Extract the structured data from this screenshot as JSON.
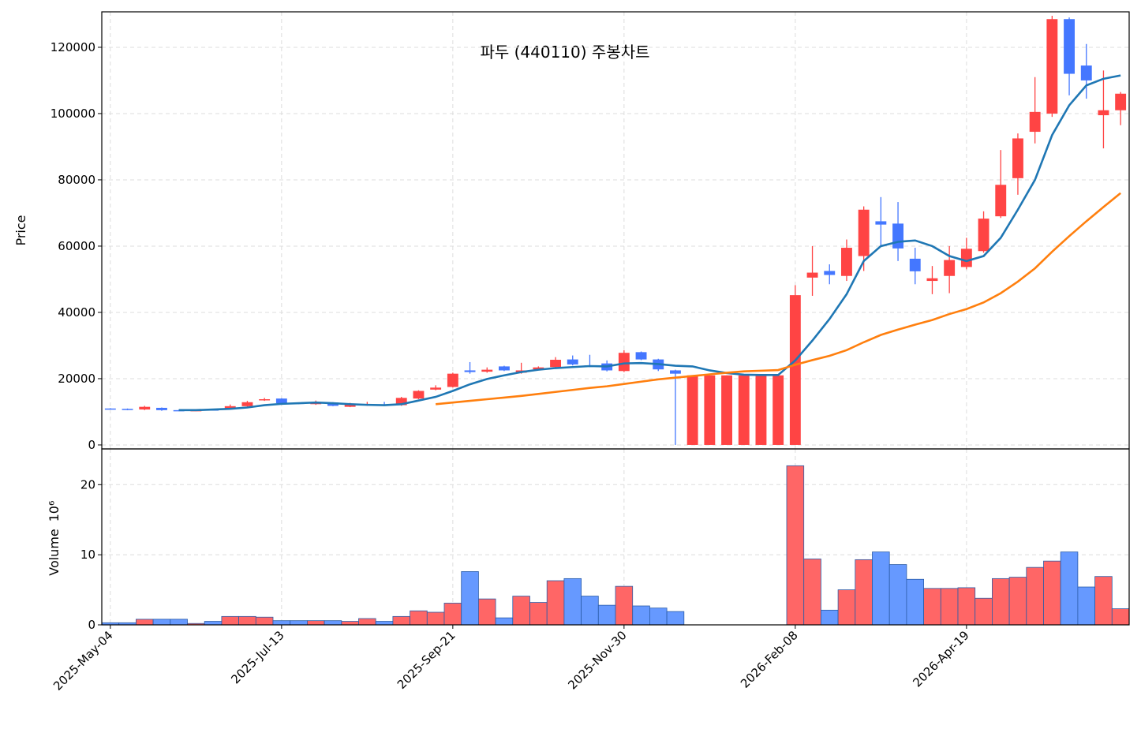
{
  "chart_data": {
    "type": "candlestick",
    "title": "파두 (440110) 주봉차트",
    "ylabel": "Price",
    "volume_ylabel": "Volume",
    "volume_offset": "10⁶",
    "categories": [
      "2025-May-04",
      null,
      null,
      null,
      null,
      null,
      null,
      null,
      null,
      null,
      "2025-Jul-13",
      null,
      null,
      null,
      null,
      null,
      null,
      null,
      null,
      null,
      "2025-Sep-21",
      null,
      null,
      null,
      null,
      null,
      null,
      null,
      null,
      null,
      "2025-Nov-30",
      null,
      null,
      null,
      null,
      null,
      null,
      null,
      null,
      null,
      "2026-Feb-08",
      null,
      null,
      null,
      null,
      null,
      null,
      null,
      null,
      null,
      "2026-Apr-19",
      null,
      null,
      null,
      null,
      null,
      null,
      null,
      null,
      null
    ],
    "open": [
      11000,
      10900,
      10700,
      11200,
      10500,
      10300,
      10700,
      10900,
      11700,
      13500,
      14000,
      12700,
      12300,
      12800,
      11500,
      12000,
      12200,
      12000,
      14000,
      16700,
      17500,
      22500,
      22100,
      23700,
      21800,
      22800,
      23500,
      25800,
      24000,
      24600,
      22300,
      28000,
      25800,
      22500,
      0,
      0,
      0,
      0,
      0,
      0,
      0,
      50500,
      52500,
      51000,
      57000,
      67500,
      66800,
      56200,
      49500,
      51000,
      53700,
      58500,
      69000,
      80500,
      94500,
      100000,
      128500,
      114500,
      99500,
      101000
    ],
    "high": [
      11100,
      11000,
      11800,
      11300,
      10600,
      10600,
      10900,
      12200,
      13300,
      14200,
      14100,
      12800,
      13400,
      12900,
      12700,
      13000,
      13000,
      14500,
      16500,
      18000,
      21800,
      25000,
      23400,
      23900,
      24800,
      23700,
      26500,
      27000,
      27200,
      25500,
      28600,
      28200,
      26000,
      22700,
      21000,
      21000,
      21000,
      21000,
      21000,
      21000,
      48200,
      60000,
      54500,
      62000,
      72000,
      74800,
      73300,
      59500,
      54000,
      60000,
      62500,
      70500,
      89000,
      94000,
      111000,
      129500,
      129000,
      121000,
      113000,
      106500
    ],
    "low": [
      10700,
      10500,
      10500,
      10300,
      10200,
      10200,
      10400,
      10700,
      11500,
      13300,
      12500,
      12300,
      12100,
      11700,
      11400,
      11800,
      11800,
      11800,
      13800,
      16500,
      17300,
      21500,
      21800,
      22300,
      21500,
      22600,
      23300,
      24000,
      23500,
      22200,
      22000,
      25600,
      22300,
      0,
      0,
      0,
      0,
      0,
      0,
      0,
      0,
      45000,
      48500,
      49500,
      52500,
      60000,
      55500,
      48500,
      45500,
      45800,
      53000,
      58000,
      68500,
      75500,
      91000,
      99000,
      105500,
      104500,
      89500,
      96500
    ],
    "close": [
      10800,
      10600,
      11500,
      10500,
      10300,
      10500,
      10500,
      11700,
      12900,
      13800,
      12600,
      12500,
      12900,
      11800,
      12200,
      12300,
      12000,
      14200,
      16300,
      17300,
      21500,
      22000,
      22700,
      22500,
      22500,
      23400,
      25700,
      24300,
      23700,
      22500,
      27800,
      25800,
      22800,
      21500,
      21000,
      21000,
      21000,
      21000,
      21000,
      21000,
      45200,
      52000,
      51300,
      59500,
      71000,
      66500,
      59300,
      52400,
      50300,
      55800,
      59200,
      68300,
      78500,
      92500,
      100500,
      128500,
      112000,
      110000,
      101000,
      106000
    ],
    "volume": [
      0.3,
      0.3,
      0.8,
      0.8,
      0.8,
      0.2,
      0.5,
      1.2,
      1.2,
      1.1,
      0.6,
      0.6,
      0.6,
      0.6,
      0.5,
      0.9,
      0.5,
      1.2,
      2.0,
      1.8,
      3.1,
      7.6,
      3.7,
      1.0,
      4.1,
      3.2,
      6.3,
      6.6,
      4.1,
      2.8,
      5.5,
      2.7,
      2.4,
      1.9,
      0,
      0,
      0,
      0,
      0,
      0,
      22.7,
      9.4,
      2.1,
      5.0,
      9.3,
      10.4,
      8.6,
      6.5,
      5.2,
      5.2,
      5.3,
      3.8,
      6.6,
      6.8,
      8.2,
      9.1,
      10.4,
      5.4,
      6.9,
      2.3
    ],
    "up_color": "#ff4444",
    "down_color": "#4477ff",
    "volume_up_color": "#ff6666",
    "volume_down_color": "#6699ff",
    "ma": [
      {
        "color": "#1f77b4",
        "values": [
          null,
          null,
          null,
          null,
          10500,
          10500,
          10700,
          10900,
          11300,
          12000,
          12400,
          12600,
          12800,
          12600,
          12300,
          12100,
          12000,
          12300,
          13400,
          14500,
          16300,
          18300,
          19900,
          21000,
          22000,
          22700,
          23200,
          23500,
          23800,
          23700,
          24600,
          24700,
          24400,
          23900,
          23700,
          22500,
          21700,
          21200,
          21100,
          21100,
          25500,
          31500,
          38000,
          45500,
          55500,
          60000,
          61300,
          61700,
          60000,
          57000,
          55500,
          57000,
          62500,
          71000,
          80000,
          93500,
          102500,
          108500,
          110500,
          111500
        ]
      },
      {
        "color": "#ff7f0e",
        "values": [
          null,
          null,
          null,
          null,
          null,
          null,
          null,
          null,
          null,
          null,
          null,
          null,
          null,
          null,
          null,
          null,
          null,
          null,
          null,
          12300,
          12800,
          13300,
          13800,
          14300,
          14800,
          15400,
          16000,
          16600,
          17200,
          17700,
          18400,
          19100,
          19800,
          20300,
          20800,
          21300,
          21800,
          22200,
          22400,
          22600,
          24200,
          25600,
          26900,
          28600,
          31000,
          33200,
          34800,
          36300,
          37700,
          39500,
          41000,
          43000,
          45800,
          49300,
          53300,
          58300,
          63000,
          67500,
          71800,
          76000
        ]
      }
    ],
    "ylim": [
      -1200,
      130700
    ],
    "yticks": [
      0,
      20000,
      40000,
      60000,
      80000,
      100000,
      120000
    ],
    "volume_ylim": [
      0,
      25.1
    ],
    "volume_yticks": [
      0,
      10,
      20
    ],
    "grid": true
  }
}
